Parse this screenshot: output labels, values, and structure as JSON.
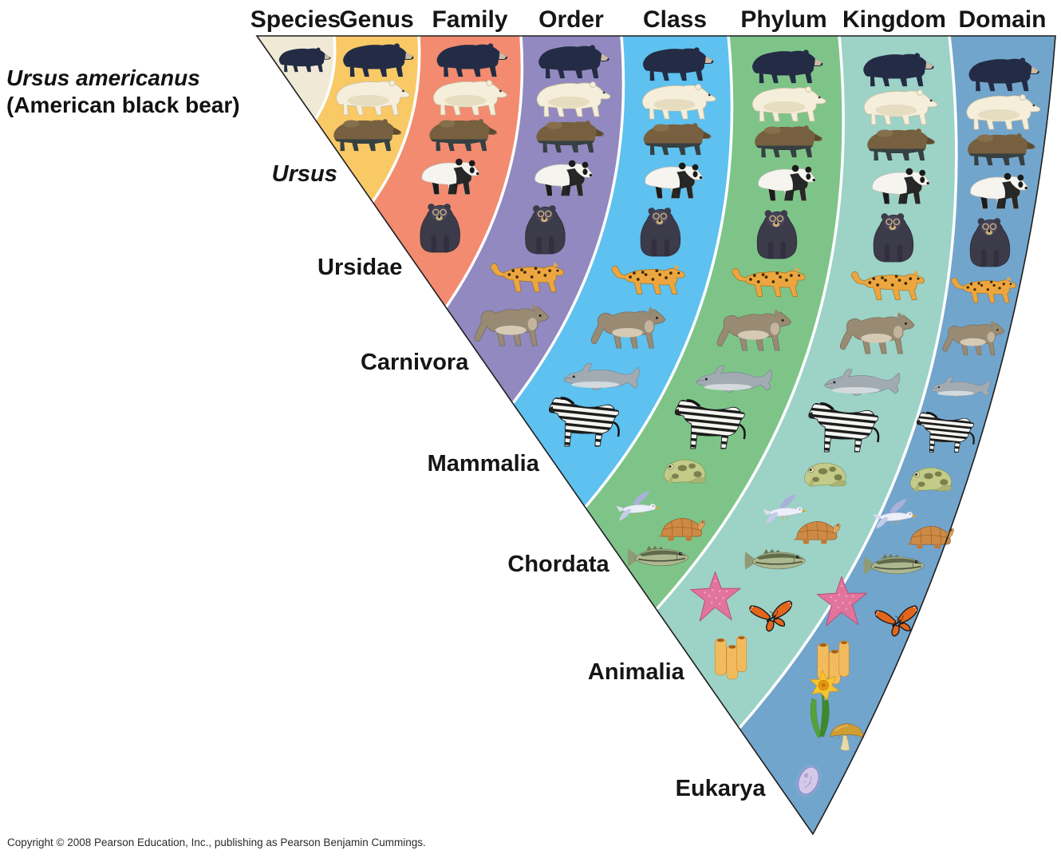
{
  "figure": {
    "subject_species": "Ursus americanus",
    "subject_common_name": "(American black bear)"
  },
  "ranks": [
    {
      "rank": "Species",
      "taxon": "Ursus americanus",
      "common_name": "(American black bear)",
      "taxon_italic": true,
      "color": "#EFE9D5",
      "animals": [
        "black-bear"
      ]
    },
    {
      "rank": "Genus",
      "taxon": "Ursus",
      "taxon_italic": true,
      "color": "#F9C966",
      "animals": [
        "black-bear",
        "polar-bear",
        "brown-bear"
      ]
    },
    {
      "rank": "Family",
      "taxon": "Ursidae",
      "taxon_italic": false,
      "color": "#F28B70",
      "animals": [
        "black-bear",
        "polar-bear",
        "brown-bear",
        "giant-panda",
        "spectacled-bear"
      ]
    },
    {
      "rank": "Order",
      "taxon": "Carnivora",
      "taxon_italic": false,
      "color": "#9189BF",
      "animals": [
        "black-bear",
        "polar-bear",
        "brown-bear",
        "giant-panda",
        "spectacled-bear",
        "jaguar",
        "gray-wolf"
      ]
    },
    {
      "rank": "Class",
      "taxon": "Mammalia",
      "taxon_italic": false,
      "color": "#5EC1EF",
      "animals": [
        "black-bear",
        "polar-bear",
        "brown-bear",
        "giant-panda",
        "spectacled-bear",
        "jaguar",
        "gray-wolf",
        "dolphin",
        "zebra"
      ]
    },
    {
      "rank": "Phylum",
      "taxon": "Chordata",
      "taxon_italic": false,
      "color": "#7EC489",
      "animals": [
        "black-bear",
        "polar-bear",
        "brown-bear",
        "giant-panda",
        "spectacled-bear",
        "jaguar",
        "gray-wolf",
        "dolphin",
        "zebra",
        "frog",
        "gull",
        "turtle",
        "bass-fish"
      ]
    },
    {
      "rank": "Kingdom",
      "taxon": "Animalia",
      "taxon_italic": false,
      "color": "#9DD2C7",
      "animals": [
        "black-bear",
        "polar-bear",
        "brown-bear",
        "giant-panda",
        "spectacled-bear",
        "jaguar",
        "gray-wolf",
        "dolphin",
        "zebra",
        "frog",
        "gull",
        "turtle",
        "bass-fish",
        "sea-star",
        "monarch-butterfly",
        "tube-sponge"
      ]
    },
    {
      "rank": "Domain",
      "taxon": "Eukarya",
      "taxon_italic": false,
      "color": "#72A5CC",
      "animals": [
        "black-bear",
        "polar-bear",
        "brown-bear",
        "giant-panda",
        "spectacled-bear",
        "jaguar",
        "gray-wolf",
        "dolphin",
        "zebra",
        "frog",
        "gull",
        "turtle",
        "bass-fish",
        "sea-star",
        "monarch-butterfly",
        "tube-sponge",
        "daffodil",
        "mushroom",
        "ciliate-protist"
      ]
    }
  ],
  "footer": {
    "copyright": "Copyright © 2008 Pearson Education, Inc., publishing as Pearson Benjamin Cummings."
  }
}
